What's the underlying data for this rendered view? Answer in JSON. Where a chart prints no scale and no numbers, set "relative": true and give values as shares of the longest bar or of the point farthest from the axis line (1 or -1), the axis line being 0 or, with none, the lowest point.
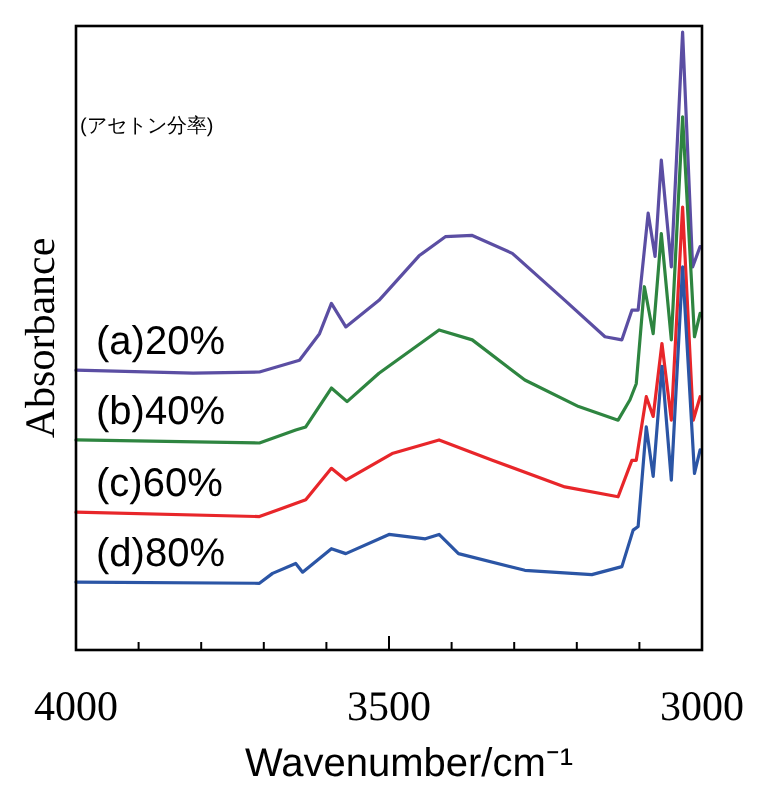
{
  "chart_data": {
    "type": "line",
    "relative": true,
    "xlabel": "Wavenumber/cm⁻¹",
    "ylabel": "Absorbance",
    "annotations": [
      "(アセトン分率)"
    ],
    "xlim": [
      4000,
      3000
    ],
    "xticks": [
      4000,
      {
        "value": 3900,
        "label": null
      },
      {
        "value": 3800,
        "label": null
      },
      {
        "value": 3700,
        "label": null
      },
      {
        "value": 3600,
        "label": null
      },
      3500,
      {
        "value": 3400,
        "label": null
      },
      {
        "value": 3300,
        "label": null
      },
      {
        "value": 3200,
        "label": null
      },
      {
        "value": 3100,
        "label": null
      },
      3000
    ],
    "grid": false,
    "tick_labels": "x",
    "marker": "none",
    "line_style": "solid",
    "series": [
      {
        "name": "(a)20%",
        "color": "#5b4ea3",
        "x": [
          4000,
          3813,
          3707,
          3643,
          3611,
          3592,
          3569,
          3516,
          3452,
          3410,
          3367,
          3303,
          3219,
          3155,
          3128,
          3112,
          3102,
          3086,
          3075,
          3065,
          3049,
          3031,
          3015,
          3003
        ],
        "values": [
          0.453,
          0.448,
          0.45,
          0.469,
          0.512,
          0.561,
          0.523,
          0.566,
          0.638,
          0.669,
          0.671,
          0.642,
          0.566,
          0.507,
          0.502,
          0.55,
          0.55,
          0.707,
          0.637,
          0.793,
          0.62,
          1,
          0.62,
          0.653
        ]
      },
      {
        "name": "(b)40%",
        "color": "#2e8540",
        "x": [
          4000,
          3707,
          3649,
          3633,
          3592,
          3567,
          3516,
          3420,
          3367,
          3283,
          3197,
          3134,
          3115,
          3105,
          3092,
          3078,
          3065,
          3049,
          3031,
          3012,
          3003
        ],
        "values": [
          0.34,
          0.335,
          0.356,
          0.361,
          0.424,
          0.402,
          0.448,
          0.518,
          0.502,
          0.437,
          0.394,
          0.372,
          0.405,
          0.431,
          0.588,
          0.512,
          0.674,
          0.502,
          0.863,
          0.507,
          0.545
        ]
      },
      {
        "name": "(c)60%",
        "color": "#e8262a",
        "x": [
          4000,
          3707,
          3633,
          3592,
          3569,
          3495,
          3420,
          3335,
          3219,
          3134,
          3112,
          3105,
          3089,
          3078,
          3064,
          3049,
          3031,
          3014,
          3003
        ],
        "values": [
          0.223,
          0.216,
          0.243,
          0.294,
          0.275,
          0.318,
          0.34,
          0.307,
          0.264,
          0.248,
          0.307,
          0.307,
          0.41,
          0.378,
          0.496,
          0.372,
          0.717,
          0.372,
          0.41
        ]
      },
      {
        "name": "(d)80%",
        "color": "#2b55a5",
        "x": [
          4000,
          3707,
          3686,
          3649,
          3638,
          3592,
          3569,
          3500,
          3442,
          3420,
          3389,
          3283,
          3176,
          3128,
          3110,
          3102,
          3089,
          3078,
          3064,
          3049,
          3031,
          3012,
          3003
        ],
        "values": [
          0.11,
          0.108,
          0.124,
          0.14,
          0.126,
          0.164,
          0.156,
          0.187,
          0.18,
          0.187,
          0.156,
          0.129,
          0.122,
          0.135,
          0.194,
          0.2,
          0.361,
          0.281,
          0.459,
          0.275,
          0.62,
          0.286,
          0.324
        ]
      }
    ]
  }
}
